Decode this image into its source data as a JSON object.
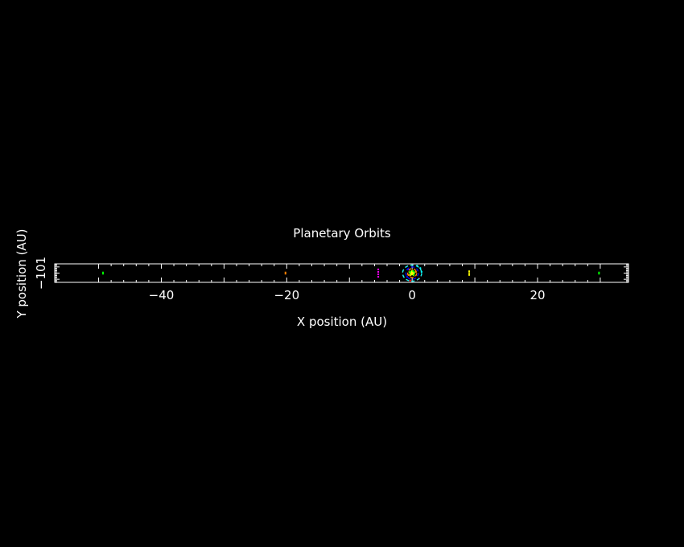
{
  "chart_data": {
    "type": "scatter",
    "title": "Planetary Orbits",
    "xlabel": "X position (AU)",
    "ylabel": "Y position (AU)",
    "xlim": [
      -57,
      34.5
    ],
    "ylim": [
      -1.5,
      1.5
    ],
    "x_ticks": [
      -40,
      -20,
      0,
      20
    ],
    "y_ticks": [
      -1,
      0,
      1
    ],
    "grid": false,
    "legend": "none",
    "colors": {
      "background": "#000000",
      "axes": "#ffffff",
      "text": "#ffffff"
    },
    "series": [
      {
        "color": "#ffff00",
        "marker": "star",
        "points": [
          [
            0,
            0
          ]
        ]
      },
      {
        "color": "#00ff00",
        "orbit_radius": 0.39,
        "points": [
          [
            -0.3,
            0.25
          ],
          [
            0.2,
            0.3
          ]
        ]
      },
      {
        "color": "#ff8000",
        "orbit_radius": 0.72,
        "points": [
          [
            -0.5,
            -0.3
          ],
          [
            0.6,
            0.2
          ]
        ]
      },
      {
        "color": "#0000ff",
        "orbit_radius": 1.0,
        "points": [
          [
            -0.8,
            -0.6
          ],
          [
            -0.7,
            0.6
          ]
        ]
      },
      {
        "color": "#ff0000",
        "orbit_radius": 1.52,
        "points": [
          [
            -0.3,
            -1.2
          ],
          [
            1.1,
            -0.9
          ]
        ]
      },
      {
        "color": "#00ffff",
        "orbit_radius": 1.52,
        "points": [
          [
            0.8,
            1.2
          ],
          [
            1.3,
            0.8
          ],
          [
            1.5,
            0.2
          ]
        ]
      },
      {
        "color": "#ff00ff",
        "points": [
          [
            -5.4,
            -0.6
          ],
          [
            -5.4,
            -0.2
          ],
          [
            -5.4,
            0.2
          ],
          [
            -5.4,
            0.6
          ]
        ]
      },
      {
        "color": "#ffff00",
        "points": [
          [
            9.1,
            -0.3
          ],
          [
            9.1,
            0.0
          ],
          [
            9.1,
            0.3
          ]
        ]
      },
      {
        "color": "#ff8000",
        "points": [
          [
            -20.2,
            -0.1
          ],
          [
            -20.2,
            0.1
          ]
        ]
      },
      {
        "color": "#00ff00",
        "points": [
          [
            29.8,
            -0.1
          ],
          [
            29.8,
            0.1
          ]
        ]
      },
      {
        "color": "#00ff00",
        "points": [
          [
            -49.3,
            -0.1
          ],
          [
            -49.3,
            0.1
          ]
        ]
      }
    ]
  }
}
